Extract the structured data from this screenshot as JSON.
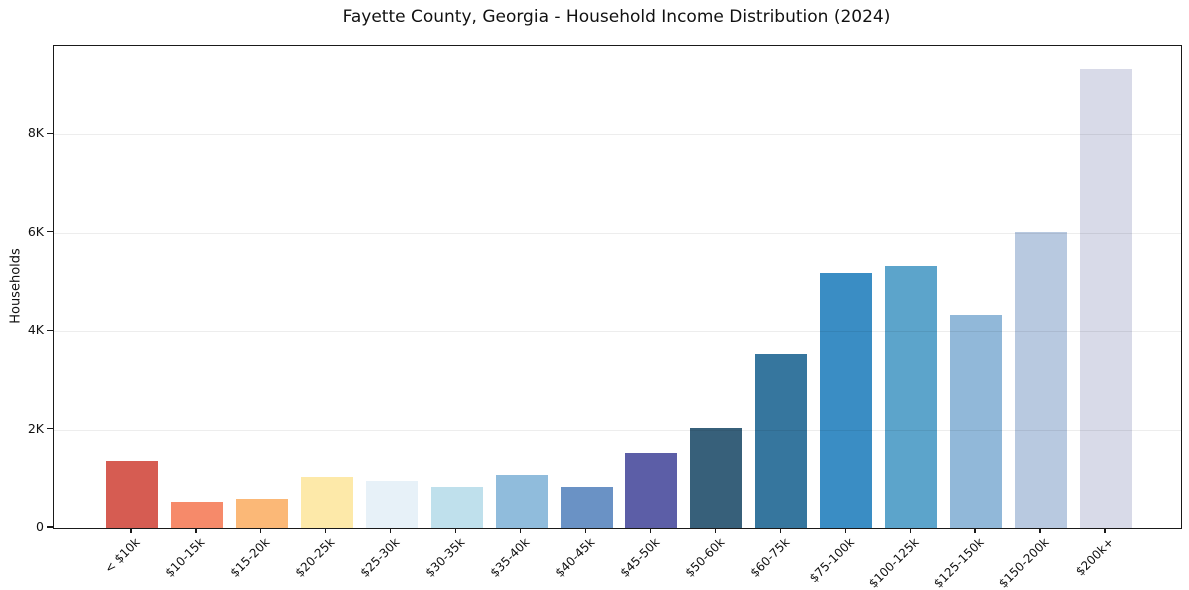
{
  "title": "Fayette County, Georgia - Household Income Distribution (2024)",
  "chart_data": {
    "type": "bar",
    "title": "Fayette County, Georgia - Household Income Distribution (2024)",
    "xlabel": "",
    "ylabel": "Households",
    "categories": [
      "< $10k",
      "$10-15k",
      "$15-20k",
      "$20-25k",
      "$25-30k",
      "$30-35k",
      "$35-40k",
      "$40-45k",
      "$45-50k",
      "$50-60k",
      "$60-75k",
      "$75-100k",
      "$100-125k",
      "$125-150k",
      "$150-200k",
      "$200k+"
    ],
    "values": [
      1360,
      530,
      590,
      1030,
      960,
      830,
      1080,
      830,
      1530,
      2040,
      3530,
      5180,
      5330,
      4330,
      6020,
      9320
    ],
    "bar_colors": [
      "#d65c52",
      "#f68a6a",
      "#fbb877",
      "#fde9a9",
      "#e7f1f8",
      "#bfe0ec",
      "#90bcdc",
      "#6a92c5",
      "#5c5ea7",
      "#37607a",
      "#36769e",
      "#3a8dc4",
      "#5ca4cb",
      "#91b8d9",
      "#b8c9e0",
      "#d8dae8"
    ],
    "ytick_labels": [
      "0",
      "2K",
      "4K",
      "6K",
      "8K"
    ],
    "ytick_values": [
      0,
      2000,
      4000,
      6000,
      8000
    ],
    "ylim": [
      0,
      9790
    ],
    "grid": "horizontal-only",
    "legend": "none",
    "xtick_rotation_deg": 45
  },
  "colors": {
    "background": "#ffffff",
    "spine": "#1a1a1a",
    "grid": "rgba(0,0,0,0.07)",
    "text": "#111111"
  }
}
